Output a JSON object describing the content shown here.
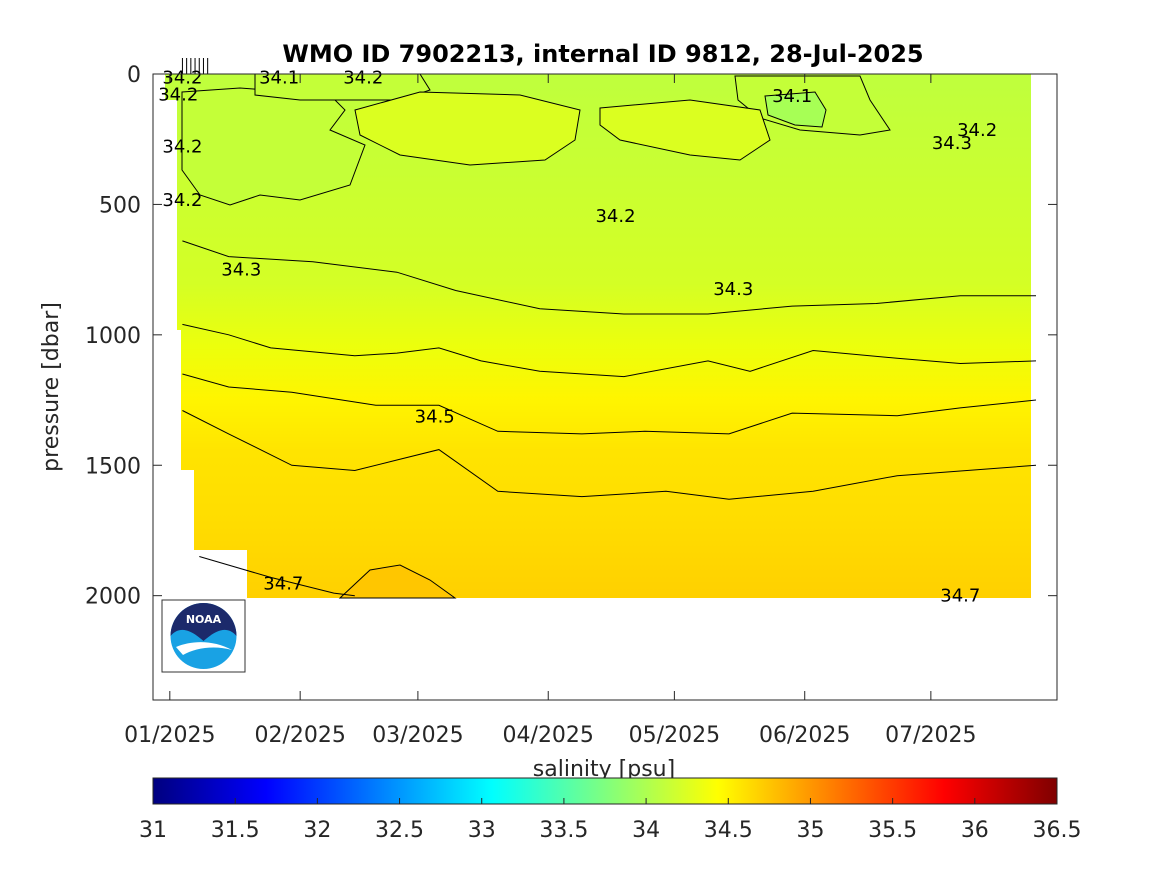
{
  "chart_data": {
    "type": "heatmap",
    "title": "WMO ID 7902213, internal ID 9812, 28-Jul-2025",
    "ylabel": "pressure [dbar]",
    "colorbar_label": "salinity [psu]",
    "colormap": "jet",
    "y_reversed": true,
    "ylim": [
      0,
      2400
    ],
    "xlim": [
      "2024-12-28",
      "2025-07-31"
    ],
    "x_ticks": [
      {
        "date": "2025-01-01",
        "label": "01/2025"
      },
      {
        "date": "2025-02-01",
        "label": "02/2025"
      },
      {
        "date": "2025-03-01",
        "label": "03/2025"
      },
      {
        "date": "2025-04-01",
        "label": "04/2025"
      },
      {
        "date": "2025-05-01",
        "label": "05/2025"
      },
      {
        "date": "2025-06-01",
        "label": "06/2025"
      },
      {
        "date": "2025-07-01",
        "label": "07/2025"
      }
    ],
    "y_ticks": [
      0,
      500,
      1000,
      1500,
      2000
    ],
    "colorbar_range": [
      31,
      36.5
    ],
    "colorbar_ticks": [
      "31",
      "31.5",
      "32",
      "32.5",
      "33",
      "33.5",
      "34",
      "34.5",
      "35",
      "35.5",
      "36",
      "36.5"
    ],
    "profile_dates": [
      "2025-01-04",
      "2025-01-05",
      "2025-01-06",
      "2025-01-07",
      "2025-01-08",
      "2025-01-09",
      "2025-01-10"
    ],
    "contour_levels": [
      34.1,
      34.2,
      34.3,
      34.4,
      34.5,
      34.6,
      34.7
    ],
    "contours": [
      {
        "level": 34.3,
        "points": [
          [
            "2025-01-04",
            640
          ],
          [
            "2025-01-15",
            700
          ],
          [
            "2025-02-04",
            720
          ],
          [
            "2025-02-24",
            760
          ],
          [
            "2025-03-10",
            830
          ],
          [
            "2025-03-30",
            900
          ],
          [
            "2025-04-19",
            920
          ],
          [
            "2025-05-09",
            920
          ],
          [
            "2025-05-29",
            890
          ],
          [
            "2025-06-18",
            880
          ],
          [
            "2025-07-08",
            850
          ],
          [
            "2025-07-26",
            850
          ]
        ]
      },
      {
        "level": 34.4,
        "points": [
          [
            "2025-01-04",
            960
          ],
          [
            "2025-01-15",
            1000
          ],
          [
            "2025-01-25",
            1050
          ],
          [
            "2025-02-14",
            1080
          ],
          [
            "2025-02-24",
            1070
          ],
          [
            "2025-03-06",
            1050
          ],
          [
            "2025-03-16",
            1100
          ],
          [
            "2025-03-30",
            1140
          ],
          [
            "2025-04-19",
            1160
          ],
          [
            "2025-05-09",
            1100
          ],
          [
            "2025-05-19",
            1140
          ],
          [
            "2025-06-03",
            1060
          ],
          [
            "2025-06-23",
            1090
          ],
          [
            "2025-07-08",
            1110
          ],
          [
            "2025-07-26",
            1100
          ]
        ]
      },
      {
        "level": 34.5,
        "points": [
          [
            "2025-01-04",
            1150
          ],
          [
            "2025-01-15",
            1200
          ],
          [
            "2025-01-30",
            1220
          ],
          [
            "2025-02-19",
            1270
          ],
          [
            "2025-03-06",
            1270
          ],
          [
            "2025-03-20",
            1370
          ],
          [
            "2025-04-09",
            1380
          ],
          [
            "2025-04-24",
            1370
          ],
          [
            "2025-05-14",
            1380
          ],
          [
            "2025-05-29",
            1300
          ],
          [
            "2025-06-23",
            1310
          ],
          [
            "2025-07-08",
            1280
          ],
          [
            "2025-07-26",
            1250
          ]
        ]
      },
      {
        "level": 34.6,
        "points": [
          [
            "2025-01-04",
            1290
          ],
          [
            "2025-01-15",
            1380
          ],
          [
            "2025-01-30",
            1500
          ],
          [
            "2025-02-14",
            1520
          ],
          [
            "2025-02-24",
            1480
          ],
          [
            "2025-03-06",
            1440
          ],
          [
            "2025-03-20",
            1600
          ],
          [
            "2025-04-09",
            1620
          ],
          [
            "2025-04-29",
            1600
          ],
          [
            "2025-05-14",
            1630
          ],
          [
            "2025-06-03",
            1600
          ],
          [
            "2025-06-23",
            1540
          ],
          [
            "2025-07-26",
            1500
          ]
        ]
      },
      {
        "level": 34.7,
        "points": [
          [
            "2025-01-08",
            1850
          ],
          [
            "2025-01-25",
            1930
          ],
          [
            "2025-02-09",
            1990
          ],
          [
            "2025-02-14",
            2000
          ]
        ]
      }
    ],
    "contour_labels": [
      {
        "text": "34.2",
        "date": "2025-01-04",
        "p": 10
      },
      {
        "text": "34.2",
        "date": "2025-01-03",
        "p": 75
      },
      {
        "text": "34.1",
        "date": "2025-01-27",
        "p": 10
      },
      {
        "text": "34.2",
        "date": "2025-02-16",
        "p": 10
      },
      {
        "text": "34.1",
        "date": "2025-05-29",
        "p": 80
      },
      {
        "text": "34.2",
        "date": "2025-07-12",
        "p": 210
      },
      {
        "text": "34.3",
        "date": "2025-07-06",
        "p": 260
      },
      {
        "text": "34.2",
        "date": "2025-01-04",
        "p": 275
      },
      {
        "text": "34.2",
        "date": "2025-01-04",
        "p": 480
      },
      {
        "text": "34.2",
        "date": "2025-04-17",
        "p": 540
      },
      {
        "text": "34.3",
        "date": "2025-01-18",
        "p": 745
      },
      {
        "text": "34.3",
        "date": "2025-05-15",
        "p": 820
      },
      {
        "text": "34.5",
        "date": "2025-03-05",
        "p": 1310
      },
      {
        "text": "34.7",
        "date": "2025-01-28",
        "p": 1950
      },
      {
        "text": "34.7",
        "date": "2025-07-08",
        "p": 1995
      }
    ]
  },
  "logo": {
    "text": "NOAA",
    "colors": {
      "navy": "#1c2a6b",
      "sky": "#19a2e4",
      "white": "#ffffff"
    }
  }
}
